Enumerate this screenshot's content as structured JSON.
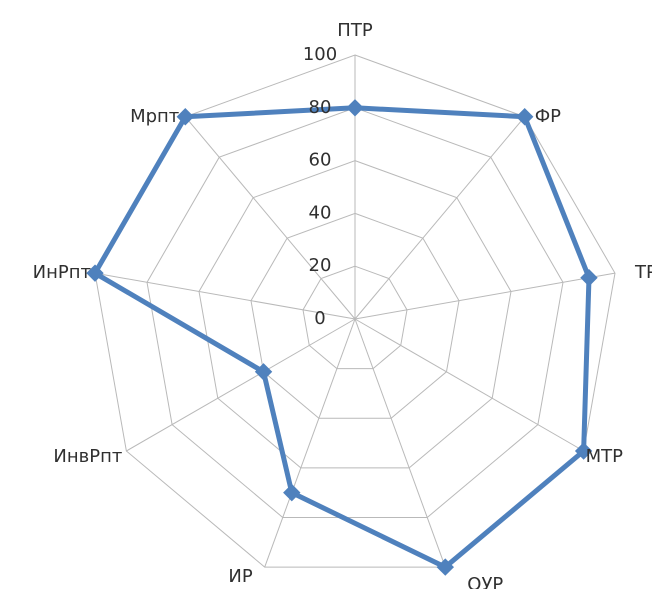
{
  "chart_data": {
    "type": "radar",
    "categories": [
      "ПТР",
      "ФР",
      "ТР",
      "МТР",
      "ОУР",
      "ИР",
      "ИнвРпт",
      "ИнРпт",
      "Мрпт"
    ],
    "series": [
      {
        "values": [
          80,
          100,
          90,
          100,
          100,
          70,
          40,
          100,
          100
        ],
        "color": "#4f81bd"
      }
    ],
    "radial_ticks": [
      "0",
      "20",
      "40",
      "60",
      "80",
      "100"
    ],
    "rlim": [
      0,
      100
    ],
    "grid": true,
    "legend": "none",
    "title": ""
  }
}
